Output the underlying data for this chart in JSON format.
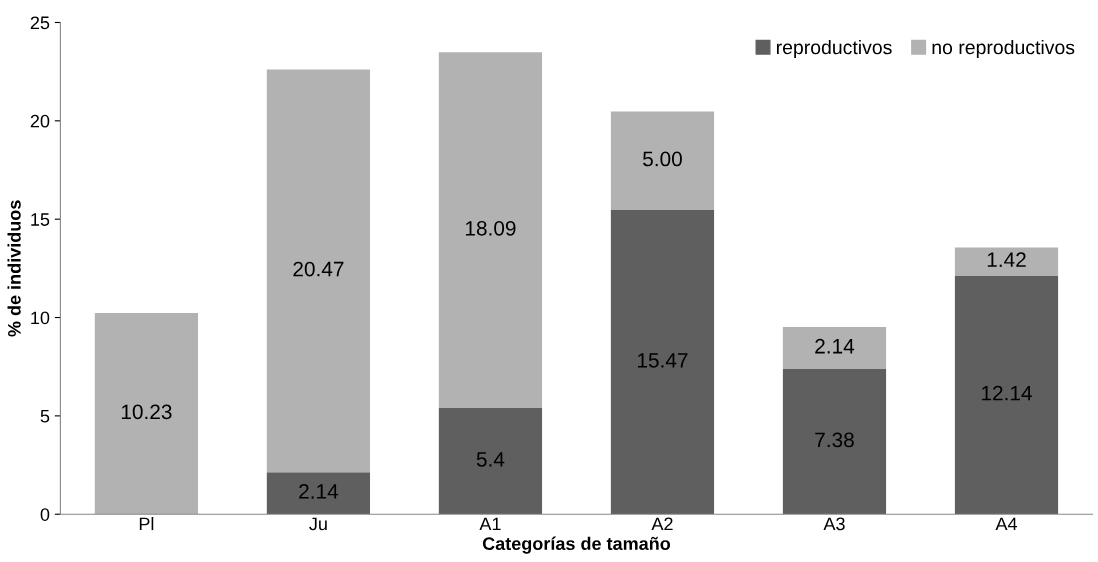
{
  "chart_data": {
    "type": "bar",
    "stacked": true,
    "xlabel": "Categorías de tamaño",
    "ylabel": "% de individuos",
    "categories": [
      "Pl",
      "Ju",
      "A1",
      "A2",
      "A3",
      "A4"
    ],
    "series": [
      {
        "name": "reproductivos",
        "color": "#5f5f5f",
        "values": [
          0,
          2.14,
          5.4,
          15.47,
          7.38,
          12.14
        ],
        "value_labels": [
          null,
          "2.14",
          "5.4",
          "15.47",
          "7.38",
          "12.14"
        ]
      },
      {
        "name": "no reproductivos",
        "color": "#b2b2b2",
        "values": [
          10.23,
          20.47,
          18.09,
          5.0,
          2.14,
          1.42
        ],
        "value_labels": [
          "10.23",
          "20.47",
          "18.09",
          "5.00",
          "2.14",
          "1.42"
        ]
      }
    ],
    "ylim": [
      0,
      25
    ],
    "yticks": [
      0,
      5,
      10,
      15,
      20,
      25
    ],
    "legend": "top right"
  }
}
